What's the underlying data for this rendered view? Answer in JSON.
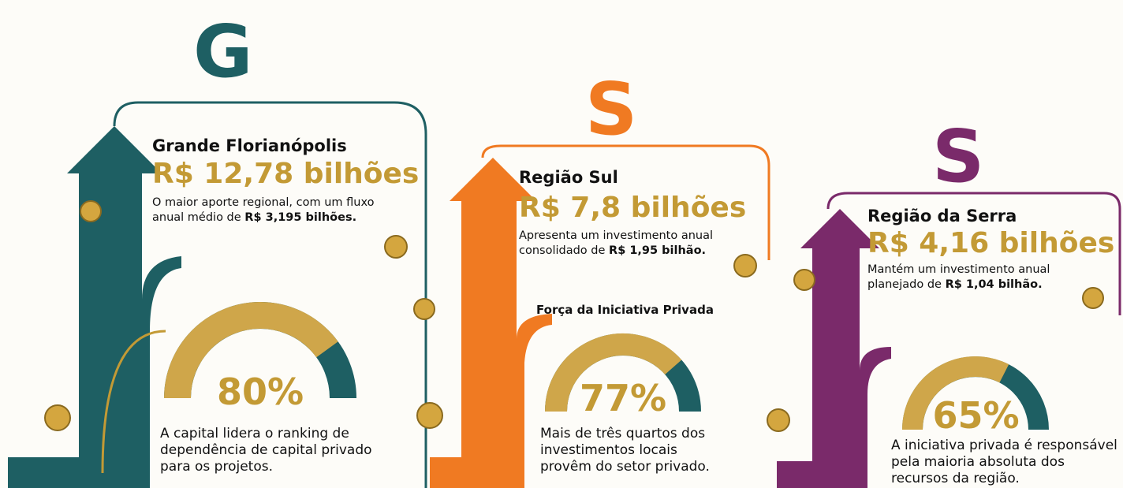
{
  "regions": [
    {
      "icon_letter": "G",
      "title": "Grande Florianópolis",
      "amount": "R$ 12,78 bilhões",
      "description": "O maior aporte regional, com um fluxo anual médio de ",
      "description_bold": "R$ 3,195 bilhões.",
      "gauge": {
        "value": 80,
        "label": "80%"
      },
      "caption": "A capital lidera o ranking de dependência de capital privado para os projetos."
    },
    {
      "icon_letter": "S",
      "title": "Região Sul",
      "amount": "R$ 7,8 bilhões",
      "description": "Apresenta um investimento anual consolidado de ",
      "description_bold": "R$ 1,95 bilhão.",
      "heading": "Força da Iniciativa Privada",
      "gauge": {
        "value": 77,
        "label": "77%"
      },
      "caption": "Mais de três quartos dos investimentos locais provêm do setor privado."
    },
    {
      "icon_letter": "S",
      "title": "Região da Serra",
      "amount": "R$ 4,16 bilhões",
      "description": "Mantém um investimento anual planejado de ",
      "description_bold": "R$ 1,04 bilhão.",
      "gauge": {
        "value": 65,
        "label": "65%"
      },
      "caption": "A iniciativa privada é responsável pela maioria absoluta dos recursos da região."
    }
  ]
}
